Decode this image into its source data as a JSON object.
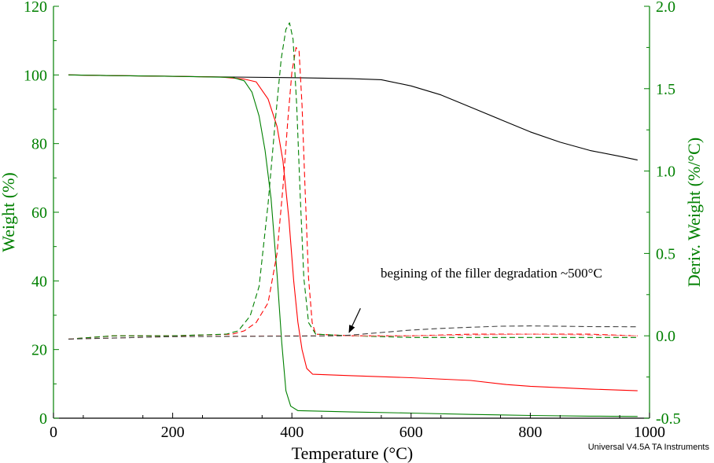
{
  "chart_data": {
    "type": "line",
    "xlabel": "Temperature (°C)",
    "ylabel_left": "Weight (%)",
    "ylabel_right": "Deriv. Weight (%/°C)",
    "xlim": [
      0,
      1000
    ],
    "ylim_left": [
      0,
      120
    ],
    "ylim_right": [
      -0.5,
      2.0
    ],
    "x_ticks": [
      0,
      200,
      400,
      600,
      800,
      1000
    ],
    "y_left_ticks": [
      0,
      20,
      40,
      60,
      80,
      100,
      120
    ],
    "y_right_ticks": [
      "-0.5",
      "0.0",
      "0.5",
      "1.0",
      "1.5",
      "2.0"
    ],
    "grid": false,
    "colors": {
      "left_axis": "#008000",
      "right_axis": "#008000",
      "x_axis": "#000000"
    },
    "annotation": {
      "text": "begining of the filler degradation ~500°C",
      "arrow_from": [
        515,
        32
      ],
      "arrow_to": [
        496,
        25
      ]
    },
    "credit": "Universal V4.5A TA Instruments",
    "series": [
      {
        "axis": "left",
        "color": "#000000",
        "dash": "solid",
        "points": [
          [
            25,
            100
          ],
          [
            100,
            99.8
          ],
          [
            200,
            99.6
          ],
          [
            300,
            99.4
          ],
          [
            400,
            99.2
          ],
          [
            500,
            98.9
          ],
          [
            550,
            98.6
          ],
          [
            600,
            96.8
          ],
          [
            650,
            94.2
          ],
          [
            700,
            90.6
          ],
          [
            750,
            87
          ],
          [
            800,
            83.4
          ],
          [
            850,
            80.4
          ],
          [
            900,
            78
          ],
          [
            950,
            76.3
          ],
          [
            980,
            75.2
          ]
        ]
      },
      {
        "axis": "left",
        "color": "#ff0000",
        "dash": "solid",
        "points": [
          [
            25,
            100
          ],
          [
            100,
            99.8
          ],
          [
            200,
            99.6
          ],
          [
            280,
            99.4
          ],
          [
            320,
            98.8
          ],
          [
            340,
            98
          ],
          [
            360,
            93
          ],
          [
            375,
            85
          ],
          [
            385,
            75
          ],
          [
            395,
            58
          ],
          [
            403,
            40
          ],
          [
            410,
            28
          ],
          [
            417,
            20
          ],
          [
            425,
            14.5
          ],
          [
            435,
            12.8
          ],
          [
            500,
            12.4
          ],
          [
            600,
            11.8
          ],
          [
            700,
            11
          ],
          [
            760,
            9.8
          ],
          [
            800,
            9.3
          ],
          [
            900,
            8.5
          ],
          [
            980,
            8
          ]
        ]
      },
      {
        "axis": "left",
        "color": "#008000",
        "dash": "solid",
        "points": [
          [
            25,
            100
          ],
          [
            100,
            99.8
          ],
          [
            200,
            99.6
          ],
          [
            300,
            99.3
          ],
          [
            320,
            98.3
          ],
          [
            333,
            95
          ],
          [
            345,
            88
          ],
          [
            355,
            78
          ],
          [
            365,
            64
          ],
          [
            375,
            42
          ],
          [
            383,
            22
          ],
          [
            390,
            8
          ],
          [
            398,
            3.5
          ],
          [
            410,
            2.2
          ],
          [
            500,
            1.8
          ],
          [
            600,
            1.5
          ],
          [
            700,
            1.1
          ],
          [
            800,
            0.8
          ],
          [
            900,
            0.6
          ],
          [
            980,
            0.5
          ]
        ]
      },
      {
        "axis": "right",
        "color": "#ff0000",
        "dash": "dashed",
        "points": [
          [
            25,
            -0.02
          ],
          [
            100,
            0
          ],
          [
            200,
            0
          ],
          [
            300,
            0.01
          ],
          [
            320,
            0.03
          ],
          [
            340,
            0.08
          ],
          [
            360,
            0.2
          ],
          [
            375,
            0.5
          ],
          [
            385,
            0.9
          ],
          [
            393,
            1.3
          ],
          [
            400,
            1.6
          ],
          [
            407,
            1.75
          ],
          [
            412,
            1.73
          ],
          [
            417,
            1.4
          ],
          [
            422,
            0.9
          ],
          [
            428,
            0.35
          ],
          [
            434,
            0.08
          ],
          [
            440,
            0.01
          ],
          [
            500,
            0
          ],
          [
            600,
            0
          ],
          [
            700,
            0.01
          ],
          [
            800,
            0.01
          ],
          [
            900,
            0.01
          ],
          [
            980,
            0
          ]
        ]
      },
      {
        "axis": "right",
        "color": "#008000",
        "dash": "dashed",
        "points": [
          [
            25,
            -0.02
          ],
          [
            100,
            0
          ],
          [
            200,
            0
          ],
          [
            290,
            0.01
          ],
          [
            310,
            0.03
          ],
          [
            330,
            0.12
          ],
          [
            345,
            0.3
          ],
          [
            360,
            0.8
          ],
          [
            372,
            1.3
          ],
          [
            382,
            1.68
          ],
          [
            390,
            1.86
          ],
          [
            396,
            1.9
          ],
          [
            402,
            1.8
          ],
          [
            408,
            1.4
          ],
          [
            414,
            0.85
          ],
          [
            420,
            0.35
          ],
          [
            428,
            0.08
          ],
          [
            440,
            0.01
          ],
          [
            500,
            0
          ],
          [
            600,
            -0.01
          ],
          [
            700,
            -0.01
          ],
          [
            800,
            -0.01
          ],
          [
            900,
            -0.01
          ],
          [
            980,
            -0.01
          ]
        ]
      },
      {
        "axis": "right",
        "color": "#ff7f7f",
        "dash": "dashed",
        "points": [
          [
            25,
            -0.02
          ],
          [
            200,
            -0.005
          ],
          [
            400,
            0
          ],
          [
            600,
            0
          ],
          [
            700,
            0.005
          ],
          [
            800,
            0.01
          ],
          [
            900,
            0.005
          ],
          [
            980,
            0.0
          ]
        ]
      },
      {
        "axis": "right",
        "color": "#404040",
        "dash": "dashed",
        "points": [
          [
            25,
            -0.02
          ],
          [
            200,
            -0.005
          ],
          [
            400,
            -0.002
          ],
          [
            480,
            0
          ],
          [
            500,
            0.005
          ],
          [
            550,
            0.02
          ],
          [
            600,
            0.035
          ],
          [
            650,
            0.045
          ],
          [
            700,
            0.052
          ],
          [
            750,
            0.058
          ],
          [
            800,
            0.06
          ],
          [
            850,
            0.058
          ],
          [
            900,
            0.056
          ],
          [
            980,
            0.055
          ]
        ]
      }
    ]
  }
}
